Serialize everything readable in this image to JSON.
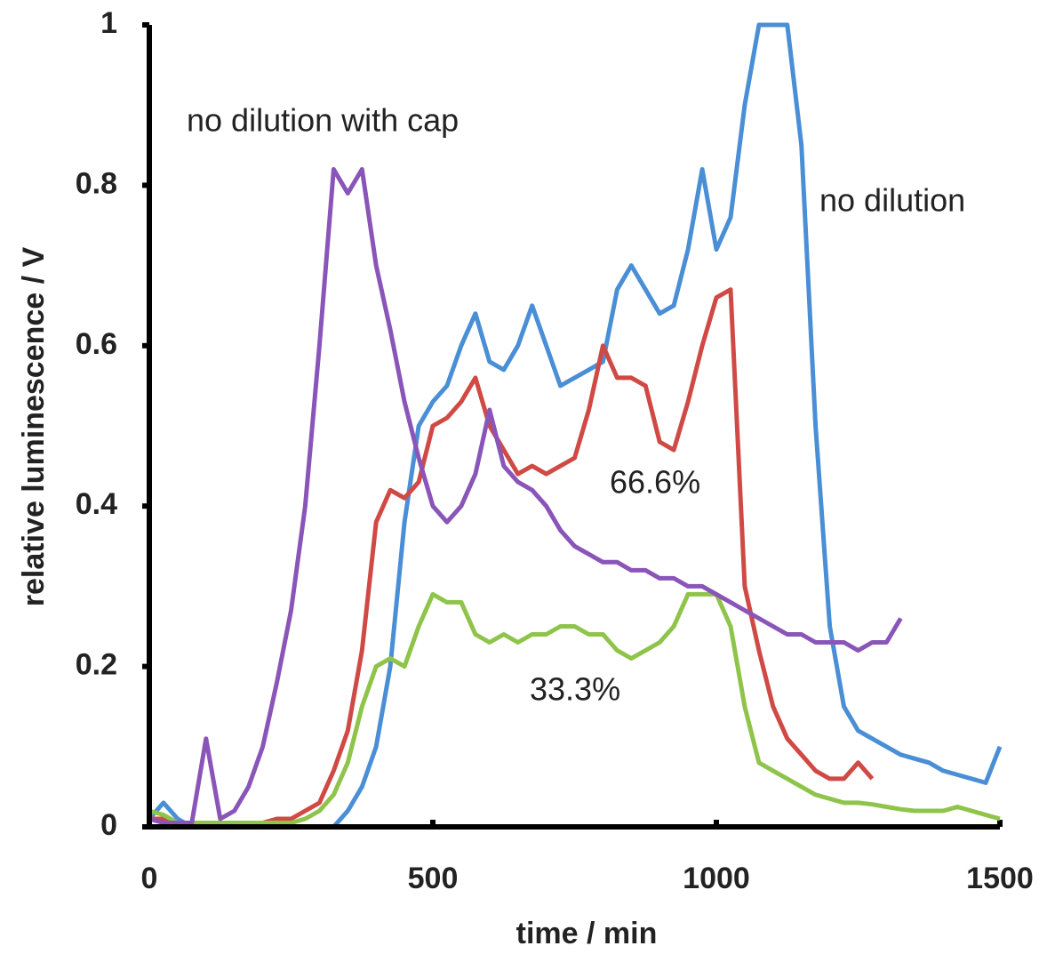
{
  "chart_data": {
    "type": "line",
    "xlabel": "time / min",
    "ylabel": "relative luminescence / V",
    "xlim": [
      0,
      1500
    ],
    "ylim": [
      0,
      1
    ],
    "xticks": [
      0,
      500,
      1000,
      1500
    ],
    "yticks": [
      0,
      0.2,
      0.4,
      0.6,
      0.8,
      1
    ],
    "grid": false,
    "x": [
      0,
      25,
      50,
      75,
      100,
      125,
      150,
      175,
      200,
      225,
      250,
      275,
      300,
      325,
      350,
      375,
      400,
      425,
      450,
      475,
      500,
      525,
      550,
      575,
      600,
      625,
      650,
      675,
      700,
      725,
      750,
      775,
      800,
      825,
      850,
      875,
      900,
      925,
      950,
      975,
      1000,
      1025,
      1050,
      1075,
      1100,
      1125,
      1150,
      1175,
      1200,
      1225,
      1250,
      1275,
      1300,
      1325,
      1350,
      1375,
      1400,
      1425,
      1450,
      1475,
      1500
    ],
    "series": [
      {
        "name": "no dilution",
        "color": "#4a8fd6",
        "values": [
          0.01,
          0.03,
          0.01,
          0,
          0,
          0,
          0,
          0,
          0,
          0,
          0,
          0,
          0,
          0,
          0.02,
          0.05,
          0.1,
          0.2,
          0.38,
          0.5,
          0.53,
          0.55,
          0.6,
          0.64,
          0.58,
          0.57,
          0.6,
          0.65,
          0.6,
          0.55,
          0.56,
          0.57,
          0.58,
          0.67,
          0.7,
          0.67,
          0.64,
          0.65,
          0.72,
          0.82,
          0.72,
          0.76,
          0.9,
          1,
          1,
          1,
          0.85,
          0.5,
          0.25,
          0.15,
          0.12,
          0.11,
          0.1,
          0.09,
          0.085,
          0.08,
          0.07,
          0.065,
          0.06,
          0.055,
          0.1
        ]
      },
      {
        "name": "66.6%",
        "color": "#d04a45",
        "values": [
          0.01,
          0.01,
          0.005,
          0.005,
          0.005,
          0.005,
          0.005,
          0.005,
          0.005,
          0.01,
          0.01,
          0.02,
          0.03,
          0.07,
          0.12,
          0.22,
          0.38,
          0.42,
          0.41,
          0.43,
          0.5,
          0.51,
          0.53,
          0.56,
          0.5,
          0.47,
          0.44,
          0.45,
          0.44,
          0.45,
          0.46,
          0.52,
          0.6,
          0.56,
          0.56,
          0.55,
          0.48,
          0.47,
          0.53,
          0.6,
          0.66,
          0.67,
          0.3,
          0.22,
          0.15,
          0.11,
          0.09,
          0.07,
          0.06,
          0.06,
          0.08,
          0.06,
          null,
          null,
          null,
          null,
          null,
          null,
          null,
          null,
          null
        ]
      },
      {
        "name": "33.3%",
        "color": "#8fc44a",
        "values": [
          0.02,
          0.015,
          0.005,
          0.005,
          0.005,
          0.005,
          0.005,
          0.005,
          0.005,
          0.005,
          0.005,
          0.01,
          0.02,
          0.04,
          0.08,
          0.15,
          0.2,
          0.21,
          0.2,
          0.25,
          0.29,
          0.28,
          0.28,
          0.24,
          0.23,
          0.24,
          0.23,
          0.24,
          0.24,
          0.25,
          0.25,
          0.24,
          0.24,
          0.22,
          0.21,
          0.22,
          0.23,
          0.25,
          0.29,
          0.29,
          0.29,
          0.25,
          0.15,
          0.08,
          0.07,
          0.06,
          0.05,
          0.04,
          0.035,
          0.03,
          0.03,
          0.028,
          0.025,
          0.022,
          0.02,
          0.02,
          0.02,
          0.025,
          0.02,
          0.015,
          0.01
        ]
      },
      {
        "name": "no dilution with cap",
        "color": "#8a55b8",
        "values": [
          0.01,
          0.005,
          0.005,
          0.005,
          0.11,
          0.01,
          0.02,
          0.05,
          0.1,
          0.18,
          0.27,
          0.4,
          0.6,
          0.82,
          0.79,
          0.82,
          0.7,
          0.62,
          0.53,
          0.46,
          0.4,
          0.38,
          0.4,
          0.44,
          0.52,
          0.45,
          0.43,
          0.42,
          0.4,
          0.37,
          0.35,
          0.34,
          0.33,
          0.33,
          0.32,
          0.32,
          0.31,
          0.31,
          0.3,
          0.3,
          0.29,
          0.28,
          0.27,
          0.26,
          0.25,
          0.24,
          0.24,
          0.23,
          0.23,
          0.23,
          0.22,
          0.23,
          0.23,
          0.26,
          null,
          null,
          null,
          null,
          null,
          null,
          null
        ]
      }
    ]
  }
}
